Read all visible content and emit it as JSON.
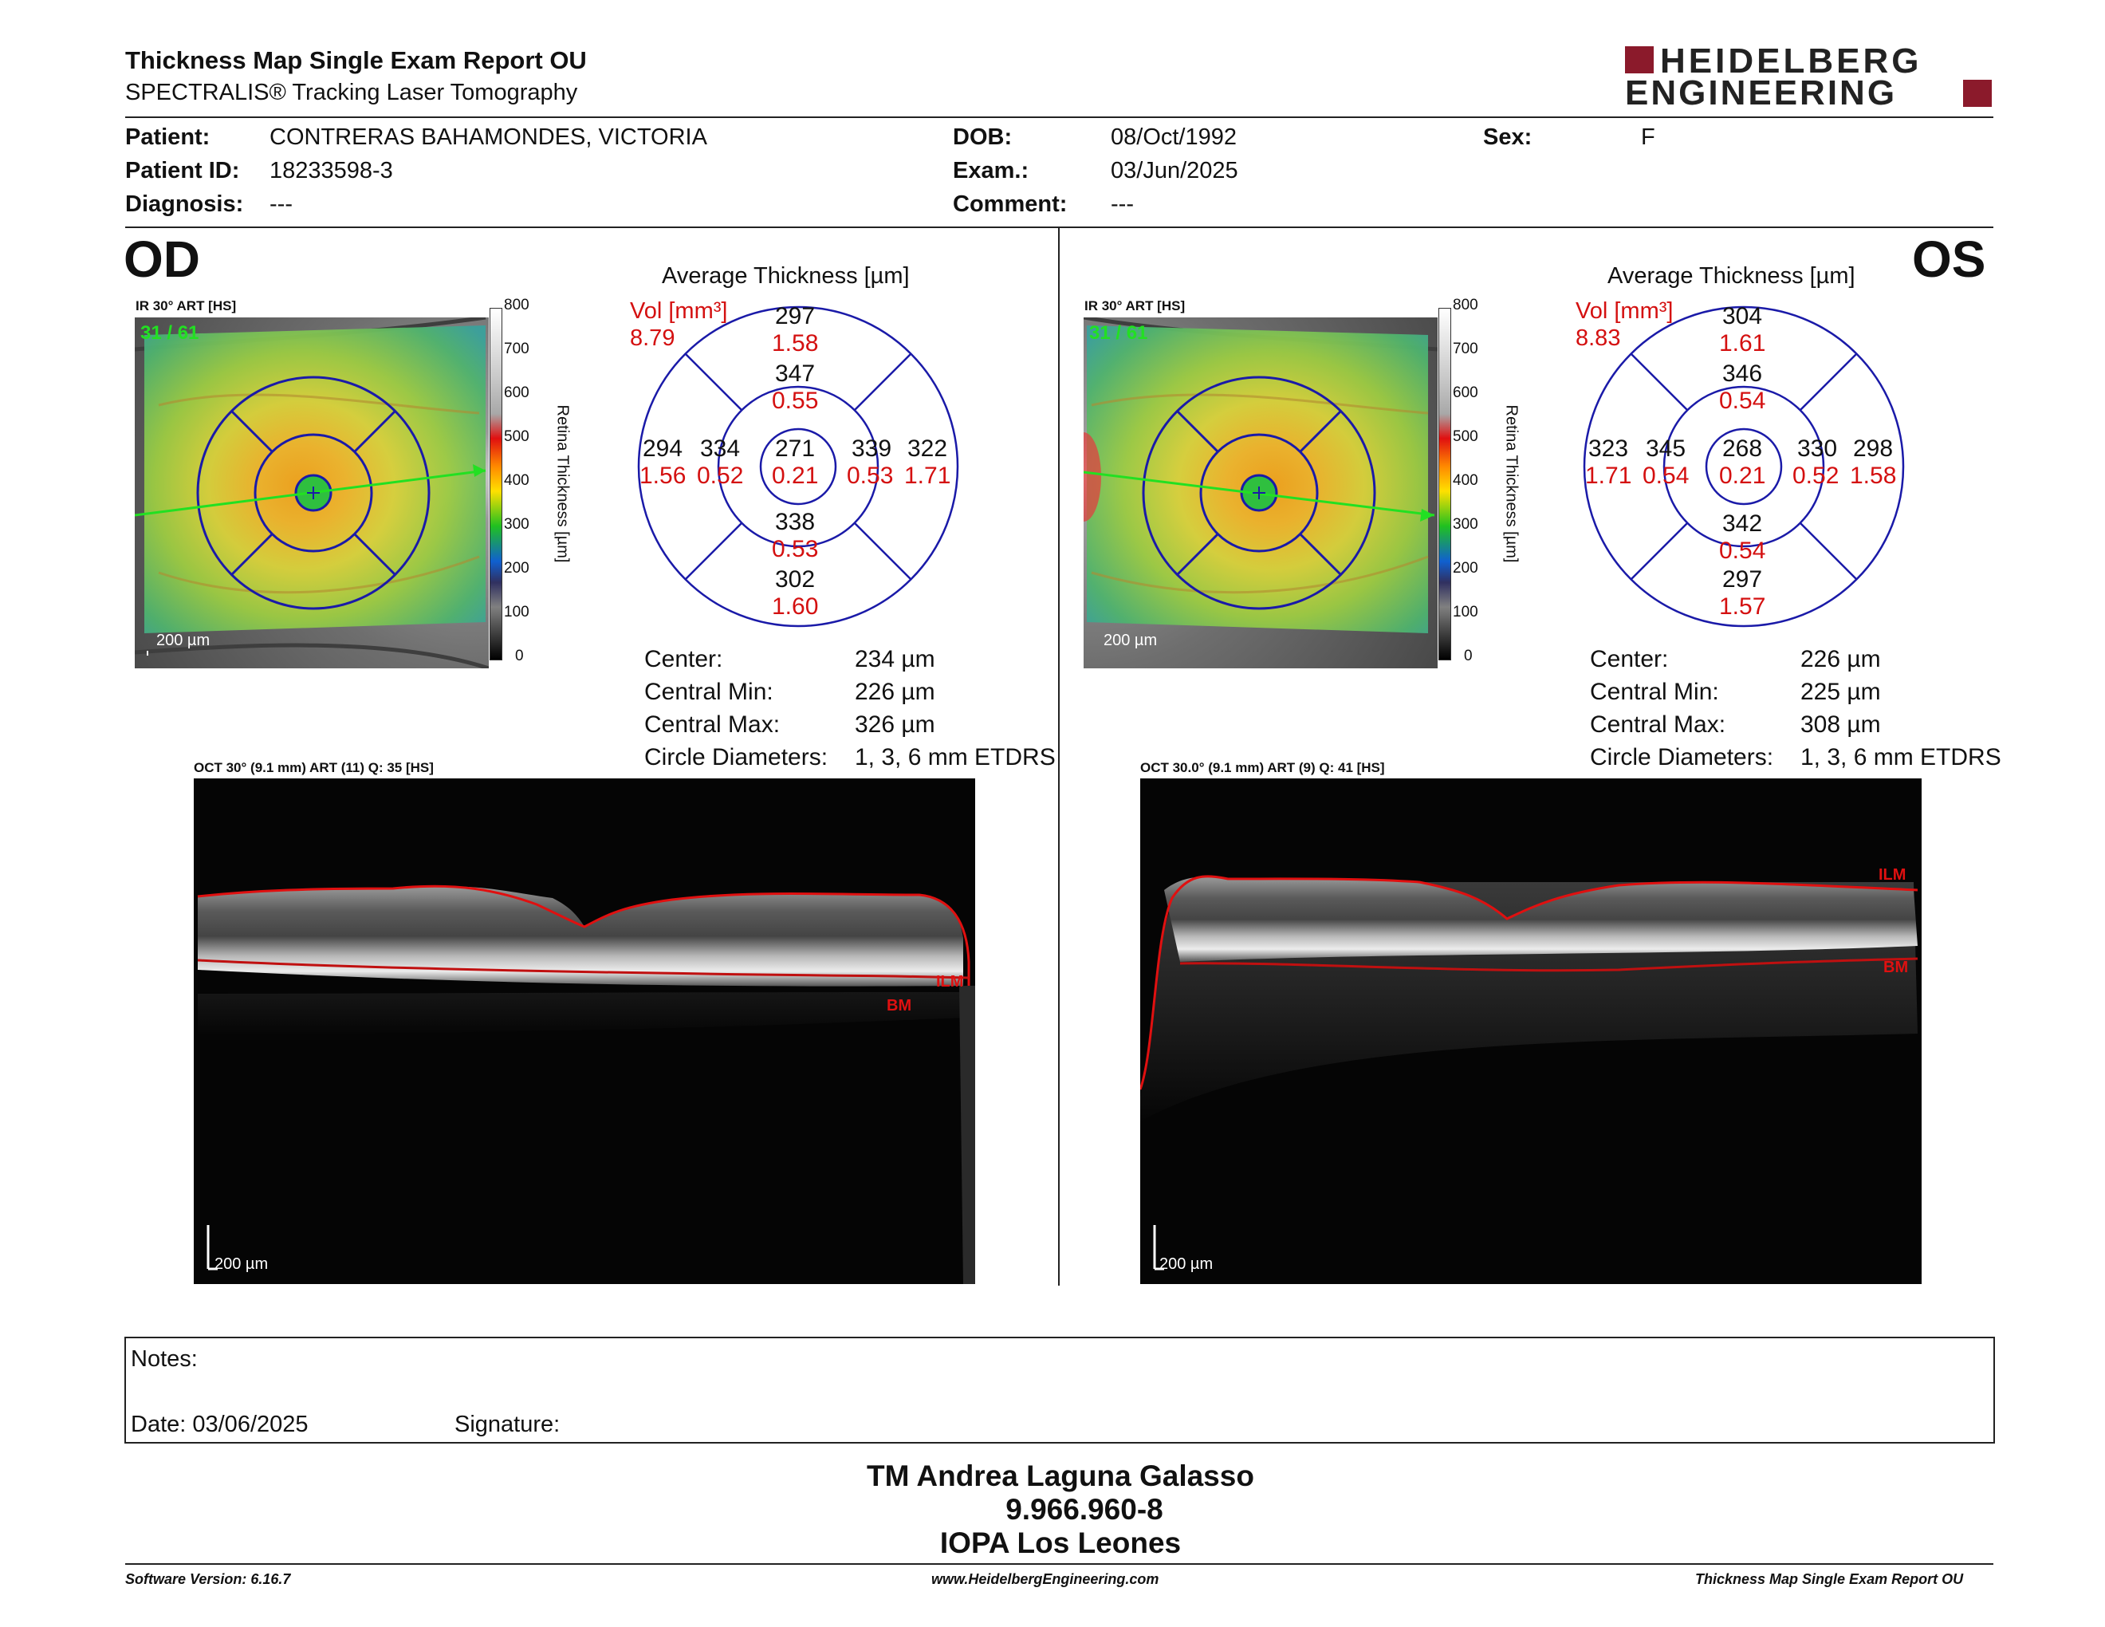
{
  "header": {
    "title": "Thickness Map Single Exam Report OU",
    "subtitle": "SPECTRALIS® Tracking Laser Tomography",
    "logo_line1": "HEIDELBERG",
    "logo_line2": "ENGINEERING",
    "brand_color": "#8b1a2b"
  },
  "patient": {
    "patient_label": "Patient:",
    "patient_value": "CONTRERAS BAHAMONDES, VICTORIA",
    "id_label": "Patient ID:",
    "id_value": "18233598-3",
    "diagnosis_label": "Diagnosis:",
    "diagnosis_value": "---",
    "dob_label": "DOB:",
    "dob_value": "08/Oct/1992",
    "exam_label": "Exam.:",
    "exam_value": "03/Jun/2025",
    "comment_label": "Comment:",
    "comment_value": "---",
    "sex_label": "Sex:",
    "sex_value": "F"
  },
  "colorbar": {
    "ticks": [
      "800",
      "700",
      "600",
      "500",
      "400",
      "300",
      "200",
      "100",
      "0"
    ],
    "label": "Retina Thickness [µm]"
  },
  "od": {
    "eye": "OD",
    "ir_label": "IR 30° ART [HS]",
    "frame": "31 / 61",
    "scale": "200 µm",
    "avg_title": "Average Thickness [µm]",
    "vol_label": "Vol [mm³]",
    "vol_total": "8.79",
    "sectors": {
      "center": {
        "t": "271",
        "v": "0.21"
      },
      "inner_sup": {
        "t": "347",
        "v": "0.55"
      },
      "inner_inf": {
        "t": "338",
        "v": "0.53"
      },
      "inner_left": {
        "t": "334",
        "v": "0.52"
      },
      "inner_right": {
        "t": "339",
        "v": "0.53"
      },
      "outer_sup": {
        "t": "297",
        "v": "1.58"
      },
      "outer_inf": {
        "t": "302",
        "v": "1.60"
      },
      "outer_left": {
        "t": "294",
        "v": "1.56"
      },
      "outer_right": {
        "t": "322",
        "v": "1.71"
      }
    },
    "stats": {
      "center_label": "Center:",
      "center_value": "234 µm",
      "min_label": "Central Min:",
      "min_value": "226 µm",
      "max_label": "Central Max:",
      "max_value": "326 µm",
      "diam_label": "Circle Diameters:",
      "diam_value": "1, 3, 6 mm ETDRS"
    },
    "oct_label": "OCT 30° (9.1 mm) ART (11) Q: 35 [HS]",
    "ilm": "ILM",
    "bm": "BM",
    "oct_scale": "200 µm"
  },
  "os": {
    "eye": "OS",
    "ir_label": "IR 30° ART [HS]",
    "frame": "31 / 61",
    "scale": "200 µm",
    "avg_title": "Average Thickness [µm]",
    "vol_label": "Vol [mm³]",
    "vol_total": "8.83",
    "sectors": {
      "center": {
        "t": "268",
        "v": "0.21"
      },
      "inner_sup": {
        "t": "346",
        "v": "0.54"
      },
      "inner_inf": {
        "t": "342",
        "v": "0.54"
      },
      "inner_left": {
        "t": "345",
        "v": "0.54"
      },
      "inner_right": {
        "t": "330",
        "v": "0.52"
      },
      "outer_sup": {
        "t": "304",
        "v": "1.61"
      },
      "outer_inf": {
        "t": "297",
        "v": "1.57"
      },
      "outer_left": {
        "t": "323",
        "v": "1.71"
      },
      "outer_right": {
        "t": "298",
        "v": "1.58"
      }
    },
    "stats": {
      "center_label": "Center:",
      "center_value": "226 µm",
      "min_label": "Central Min:",
      "min_value": "225 µm",
      "max_label": "Central Max:",
      "max_value": "308 µm",
      "diam_label": "Circle Diameters:",
      "diam_value": "1, 3, 6 mm ETDRS"
    },
    "oct_label": "OCT 30.0° (9.1 mm) ART (9) Q: 41 [HS]",
    "ilm": "ILM",
    "bm": "BM",
    "oct_scale": "200 µm"
  },
  "notes": {
    "notes_label": "Notes:",
    "date_label": "Date: 03/06/2025",
    "signature_label": "Signature:"
  },
  "signature_block": {
    "line1": "TM Andrea Laguna Galasso",
    "line2": "9.966.960-8",
    "line3": "IOPA Los Leones"
  },
  "footer": {
    "software": "Software Version: 6.16.7",
    "website": "www.HeidelbergEngineering.com",
    "report": "Thickness Map Single Exam Report OU"
  }
}
